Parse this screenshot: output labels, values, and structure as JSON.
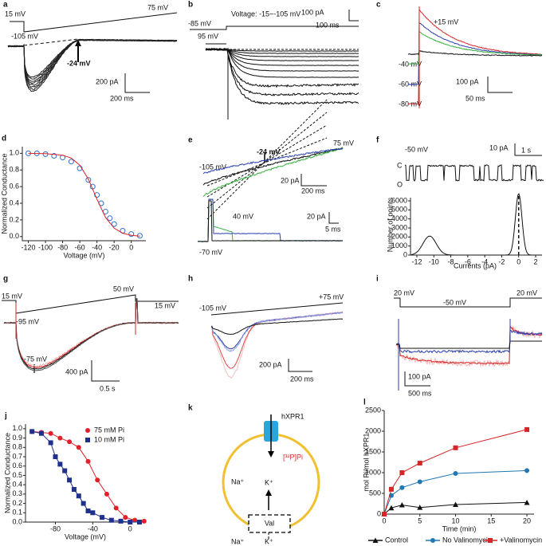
{
  "panels": {
    "a": {
      "label": "a",
      "v1": "15 mV",
      "v2": "75 mV",
      "v3": "-105 mV",
      "v4": "-24 mV",
      "s1": "200 pA",
      "s2": "200 ms"
    },
    "b": {
      "label": "b",
      "v1": "-85 mV",
      "v2": "Voltage: -15~-105 mV",
      "v3": "95 mV",
      "s1": "100 pA",
      "s2": "100 ms"
    },
    "c": {
      "label": "c",
      "v1": "+15 mV",
      "v2": "-40 mV",
      "v3": "-60 mV",
      "v4": "-80 mV",
      "s1": "100 pA",
      "s2": "50 ms"
    },
    "e": {
      "label": "e",
      "v1": "-105 mV",
      "v2": "-24 mV",
      "v3": "75 mV",
      "s1": "20 pA",
      "s2": "200 ms",
      "v4": "40 mV",
      "s3": "20 pA",
      "s4": "5 ms",
      "v5": "-70 mV"
    },
    "f": {
      "label": "f",
      "v1": "-50 mV",
      "s1": "10 pA",
      "s2": "1 s",
      "c": "C",
      "o": "O",
      "ylabel": "Number of points",
      "xlabel": "Currents (pA)",
      "xticks": [
        "-12",
        "-10",
        "-8",
        "-6",
        "-4",
        "-2",
        "0",
        "2"
      ],
      "yticks": [
        "0",
        "1000",
        "2000",
        "3000",
        "4000",
        "5000",
        "6000"
      ]
    },
    "g": {
      "label": "g",
      "v1": "15 mV",
      "v2": "50 mV",
      "v3": "15 mV",
      "v4": "-95 mV",
      "v5": "-75 mV",
      "s1": "400 pA",
      "s2": "0.5 s"
    },
    "h": {
      "label": "h",
      "v1": "-105 mV",
      "v2": "+75 mV",
      "s1": "200 pA",
      "s2": "200 ms"
    },
    "i": {
      "label": "i",
      "v1": "20 mV",
      "v2": "-50 mV",
      "v3": "20 mV",
      "s1": "100 pA",
      "s2": "500 ms"
    },
    "k": {
      "label": "k",
      "protein": "hXPR1",
      "pi": "[³²P]Pi",
      "na_in": "Na⁺",
      "k_in": "K⁺",
      "val": "Val",
      "na_out": "Na⁺",
      "k_out": "K⁺"
    }
  },
  "chart_data": [
    {
      "type": "scatter",
      "label": "d",
      "xlabel": "Voltage (mV)",
      "ylabel": "Normalized Conductance",
      "xlim": [
        -127,
        17
      ],
      "ylim": [
        -0.05,
        1.08
      ],
      "xticks": [
        -120,
        -100,
        -80,
        -60,
        -40,
        -20,
        0
      ],
      "yticks": [
        {
          "value": 0,
          "label": "0.0"
        },
        0.2,
        0.4,
        0.6,
        0.8,
        {
          "value": 1,
          "label": "1.0"
        }
      ],
      "series": [
        {
          "mode": "markers",
          "color": "#2d6fd0",
          "x": [
            -120,
            -110,
            -100,
            -90,
            -80,
            -70,
            -60,
            -50,
            -45,
            -40,
            -35,
            -30,
            -25,
            -20,
            -10,
            0,
            10
          ],
          "values": [
            1.0,
            1.0,
            0.99,
            0.97,
            0.95,
            0.9,
            0.82,
            0.68,
            0.6,
            0.5,
            0.4,
            0.3,
            0.22,
            0.15,
            0.07,
            0.03,
            0.01
          ]
        },
        {
          "mode": "line",
          "color": "#e0202a",
          "x": [
            -120,
            -100,
            -80,
            -70,
            -60,
            -50,
            -40,
            -30,
            -20,
            -10,
            0,
            10
          ],
          "values": [
            1.0,
            0.997,
            0.978,
            0.943,
            0.858,
            0.69,
            0.45,
            0.23,
            0.1,
            0.04,
            0.015,
            0.005
          ]
        }
      ]
    },
    {
      "type": "scatter",
      "label": "j",
      "xlabel": "Voltage (mV)",
      "ylabel": "Normalized Conductance",
      "xlim": [
        -112,
        16
      ],
      "ylim": [
        0,
        1.05
      ],
      "legend": "top-right",
      "xticks": [
        -80,
        -40,
        0
      ],
      "yticks": [
        {
          "value": 0,
          "label": "0.0"
        },
        0.1,
        0.2,
        0.3,
        0.4,
        0.5,
        0.6,
        0.7,
        0.8,
        0.9,
        {
          "value": 1,
          "label": "1.0"
        }
      ],
      "series": [
        {
          "name": "75 mM Pi",
          "mode": "line+markers",
          "marker": "circle",
          "color": "#e0202a",
          "x": [
            -105,
            -95,
            -85,
            -75,
            -65,
            -55,
            -45,
            -35,
            -25,
            -15,
            -5,
            5,
            15
          ],
          "values": [
            0.97,
            0.96,
            0.95,
            0.9,
            0.86,
            0.8,
            0.65,
            0.45,
            0.3,
            0.15,
            0.05,
            0.02,
            0.01
          ]
        },
        {
          "name": "10 mM Pi",
          "mode": "line+markers",
          "marker": "square",
          "color": "#1f2f8c",
          "x": [
            -105,
            -95,
            -85,
            -80,
            -75,
            -70,
            -65,
            -60,
            -55,
            -50,
            -45,
            -40,
            -30,
            -20,
            -10,
            0,
            10
          ],
          "values": [
            0.97,
            0.95,
            0.85,
            0.7,
            0.62,
            0.55,
            0.45,
            0.35,
            0.28,
            0.2,
            0.12,
            0.1,
            0.05,
            0.02,
            0.01,
            0.0,
            0.0
          ]
        }
      ]
    },
    {
      "type": "line",
      "label": "l",
      "xlabel": "Time (min)",
      "ylabel": "mol Pi/mol hXPR1",
      "xlim": [
        0,
        21
      ],
      "ylim": [
        0,
        2500
      ],
      "legend": "bottom",
      "xticks": [
        0,
        5,
        10,
        15,
        20
      ],
      "yticks": [
        0,
        500,
        1000,
        1500,
        2000,
        2500
      ],
      "x": [
        0,
        1,
        2.5,
        5,
        10,
        20
      ],
      "series": [
        {
          "name": "Control",
          "marker": "triangle",
          "color": "#111111",
          "values": [
            0,
            150,
            220,
            160,
            230,
            280
          ]
        },
        {
          "name": "No Valinomycin",
          "marker": "circle",
          "color": "#1f78b4",
          "values": [
            0,
            450,
            640,
            780,
            980,
            1050
          ]
        },
        {
          "name": "+Valinomycin",
          "marker": "square",
          "color": "#d62728",
          "values": [
            0,
            600,
            1000,
            1230,
            1600,
            2040
          ]
        }
      ]
    }
  ]
}
